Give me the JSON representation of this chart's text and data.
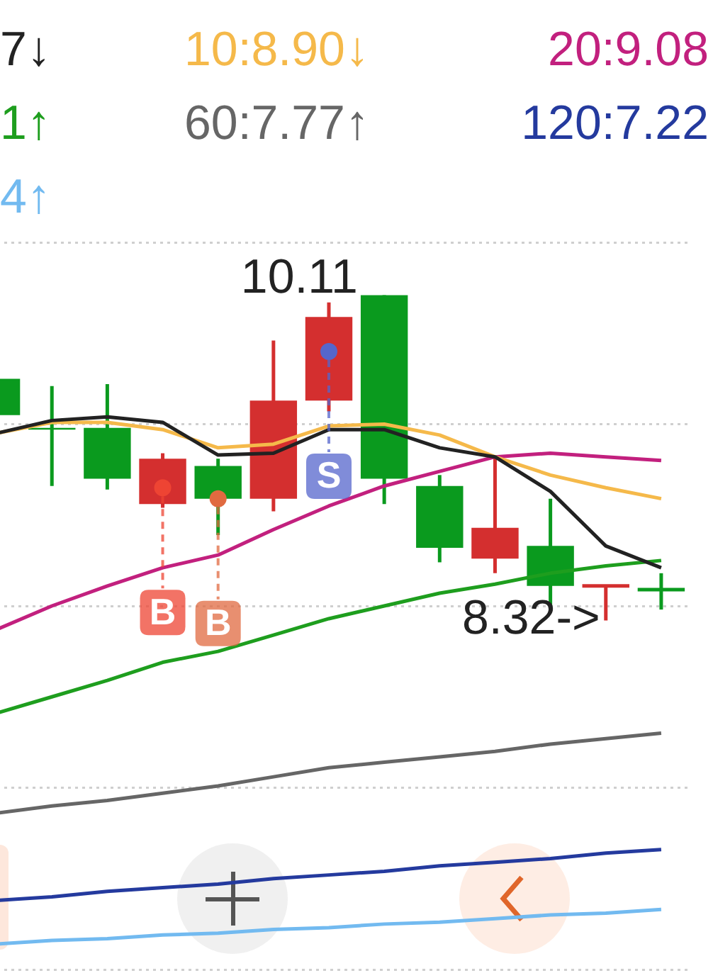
{
  "chart_data": {
    "type": "candlestick",
    "categories": [
      null,
      null,
      null,
      null,
      null,
      null,
      null,
      null,
      null,
      null,
      null,
      null,
      null
    ],
    "ohlc": [
      [
        9.65,
        9.65,
        9.45,
        9.45
      ],
      [
        9.38,
        9.61,
        9.06,
        9.37
      ],
      [
        9.38,
        9.62,
        9.04,
        9.1
      ],
      [
        8.96,
        9.24,
        8.94,
        9.21
      ],
      [
        9.17,
        9.21,
        8.79,
        8.99
      ],
      [
        8.99,
        9.86,
        8.92,
        9.53
      ],
      [
        9.53,
        10.07,
        9.47,
        9.99
      ],
      [
        10.11,
        10.11,
        8.96,
        9.1
      ],
      [
        9.06,
        9.12,
        8.64,
        8.72
      ],
      [
        8.66,
        9.22,
        8.58,
        8.83
      ],
      [
        8.73,
        8.99,
        8.4,
        8.51
      ],
      [
        8.51,
        8.51,
        8.32,
        8.51
      ],
      [
        8.49,
        8.58,
        8.38,
        8.49
      ]
    ],
    "colors": [
      "#0a9a1e",
      "#0a9a1e",
      "#0a9a1e",
      "#d42f2f",
      "#0a9a1e",
      "#d42f2f",
      "#d42f2f",
      "#0a9a1e",
      "#0a9a1e",
      "#d42f2f",
      "#0a9a1e",
      "#d42f2f",
      "#0a9a1e"
    ],
    "value_labels": [
      null,
      null,
      null,
      null,
      null,
      null,
      null,
      "10.11",
      null,
      null,
      null,
      "8.32->",
      null
    ],
    "series": [
      {
        "type": "line",
        "name": "7↓",
        "color": "#222222",
        "values": [
          9.35,
          9.42,
          9.44,
          9.41,
          9.23,
          9.24,
          9.37,
          9.37,
          9.27,
          9.22,
          9.03,
          8.73,
          8.61
        ]
      },
      {
        "type": "line",
        "name": "10:8.90↓",
        "color": "#f5b94a",
        "values": [
          9.35,
          9.41,
          9.41,
          9.37,
          9.27,
          9.29,
          9.39,
          9.4,
          9.34,
          9.22,
          9.12,
          9.05,
          8.99
        ]
      },
      {
        "type": "line",
        "name": "20:9.08",
        "color": "#c2207e",
        "values": [
          8.27,
          8.4,
          8.51,
          8.61,
          8.68,
          8.82,
          8.95,
          9.06,
          9.14,
          9.22,
          9.24,
          9.22,
          9.2
        ]
      },
      {
        "type": "line",
        "name": "1↑",
        "color": "#1e9e1e",
        "values": [
          7.81,
          7.9,
          7.99,
          8.09,
          8.15,
          8.24,
          8.33,
          8.4,
          8.47,
          8.52,
          8.58,
          8.62,
          8.65
        ]
      },
      {
        "type": "line",
        "name": "60:7.77↑",
        "color": "#666666",
        "values": [
          7.26,
          7.3,
          7.33,
          7.37,
          7.41,
          7.46,
          7.51,
          7.54,
          7.57,
          7.6,
          7.64,
          7.67,
          7.7
        ]
      },
      {
        "type": "line",
        "name": "120:7.22",
        "color": "#243a9e",
        "values": [
          6.78,
          6.8,
          6.83,
          6.85,
          6.87,
          6.9,
          6.92,
          6.94,
          6.97,
          6.99,
          7.01,
          7.04,
          7.06
        ]
      },
      {
        "type": "line",
        "name": "4↑",
        "color": "#72baf0",
        "values": [
          6.54,
          6.56,
          6.57,
          6.59,
          6.6,
          6.62,
          6.63,
          6.65,
          6.66,
          6.68,
          6.7,
          6.71,
          6.73
        ]
      },
      {
        "type": "scatter",
        "marker": "circle",
        "values": [
          null,
          null,
          null,
          9.05,
          8.99,
          null,
          9.8,
          null,
          null,
          null,
          null,
          null,
          null
        ],
        "colors": [
          null,
          null,
          null,
          "#ee4433",
          "#e06a40",
          null,
          "#5566cc",
          null,
          null,
          null,
          null,
          null,
          null
        ],
        "value_labels": [
          null,
          null,
          null,
          "B",
          "B",
          null,
          "S",
          null,
          null,
          null,
          null,
          null,
          null
        ]
      }
    ],
    "ylim": [
      6.4,
      10.4
    ],
    "yticks": [
      {
        "value": 10.4,
        "label": null
      },
      {
        "value": 9.4,
        "label": null
      },
      {
        "value": 8.4,
        "label": null
      },
      {
        "value": 7.4,
        "label": null
      },
      {
        "value": 6.4,
        "label": null
      }
    ],
    "grid": "y",
    "legend": "top",
    "marker": "none"
  }
}
